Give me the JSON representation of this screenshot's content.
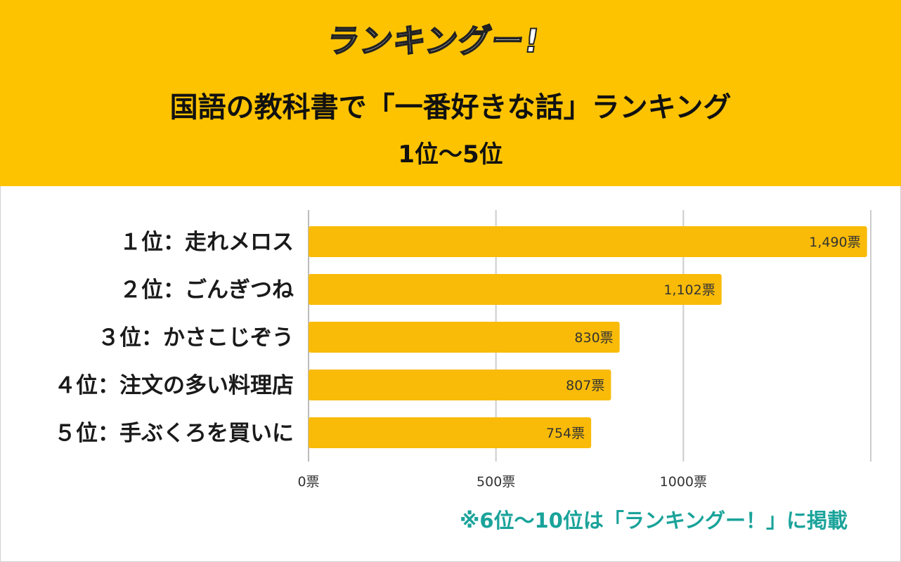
{
  "header": {
    "logo_text": "ランキングー!",
    "title": "国語の教科書で「一番好きな話」ランキング",
    "subtitle": "1位～5位"
  },
  "colors": {
    "header_bg": "#fdc300",
    "bar": "#f9bb08",
    "grid": "#cccccc",
    "note": "#1aa39a"
  },
  "chart_data": {
    "type": "bar",
    "orientation": "horizontal",
    "title": "国語の教科書で「一番好きな話」ランキング",
    "categories": [
      "１位：走れメロス",
      "２位：ごんぎつね",
      "３位：かさこじぞう",
      "４位：注文の多い料理店",
      "５位：手ぶくろを買いに"
    ],
    "values": [
      1490,
      1102,
      830,
      807,
      754
    ],
    "value_labels": [
      "1,490票",
      "1,102票",
      "830票",
      "807票",
      "754票"
    ],
    "x_ticks": [
      0,
      500,
      1000
    ],
    "x_tick_labels": [
      "0票",
      "500票",
      "1000票"
    ],
    "xlim": [
      0,
      1500
    ],
    "grid": true
  },
  "note": "※6位～10位は「ランキングー！」に掲載"
}
